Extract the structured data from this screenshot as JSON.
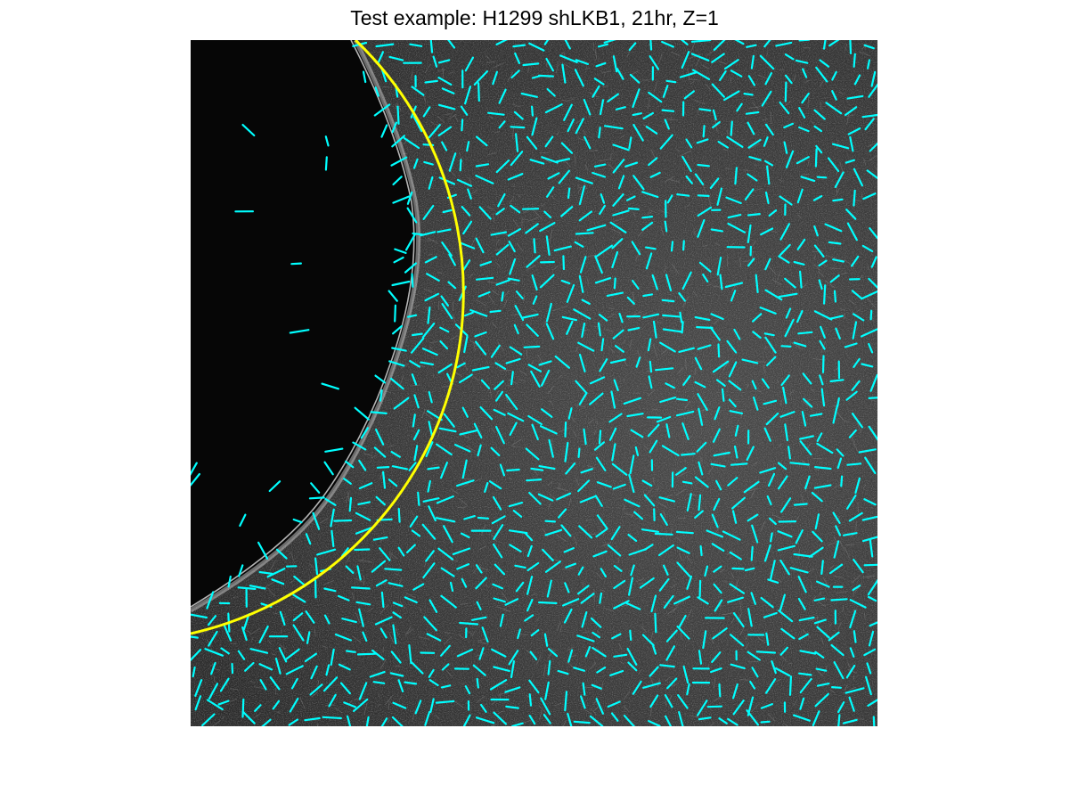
{
  "figure": {
    "title": "Test example: H1299 shLKB1, 21hr, Z=1"
  },
  "image": {
    "content": "grayscale fluorescence micrograph of fibrous matrix with dark spheroid region at left",
    "colors": {
      "background": "#ffffff",
      "dark_region": "#060606",
      "matrix_gray": "#3a3a3a",
      "fiber_highlight": "#cfcfcf",
      "fiber_segments": "#00ffff",
      "boundary_curve": "#ffff00"
    },
    "overlays": {
      "fiber_segments": "cyan line segments marking local fiber orientation",
      "boundary_curve": "yellow circular arc fitted to spheroid edge"
    }
  }
}
